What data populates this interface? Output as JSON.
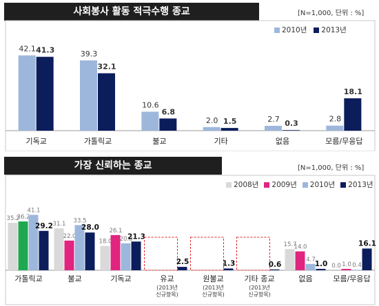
{
  "note": "[N=1,000, 단위 : %]",
  "chart_data": [
    {
      "type": "bar",
      "title": "사회봉사 활동 적극수행 종교",
      "categories": [
        "기독교",
        "가톨릭교",
        "불교",
        "기타",
        "없음",
        "모름/무응답"
      ],
      "series": [
        {
          "name": "2010년",
          "color": "#9db7dc",
          "values": [
            42.1,
            39.3,
            10.6,
            2.0,
            2.7,
            2.8
          ]
        },
        {
          "name": "2013년",
          "color": "#0c1d5c",
          "values": [
            41.3,
            32.1,
            6.8,
            1.5,
            0.3,
            18.1
          ]
        }
      ],
      "ylim": [
        0,
        50
      ],
      "grid": false,
      "legend": "top-right"
    },
    {
      "type": "bar",
      "title": "가장 신뢰하는 종교",
      "categories": [
        "가톨릭교",
        "불교",
        "기독교",
        "유교",
        "원불교",
        "기타 종교",
        "없음",
        "모름/무응답"
      ],
      "category_notes": [
        "",
        "",
        "",
        "(2013년 신규항목)",
        "(2013년 신규항목)",
        "(2013년 신규항목)",
        "",
        ""
      ],
      "series": [
        {
          "name": "2008년",
          "color": "#d9d9d9",
          "values": [
            35.2,
            31.1,
            18.0,
            null,
            null,
            null,
            15.7,
            0.0
          ]
        },
        {
          "name": "2009년",
          "color": "#e0247f",
          "alt_color": "#1fa84f",
          "values": [
            36.2,
            22.0,
            26.1,
            null,
            null,
            null,
            14.0,
            1.0
          ]
        },
        {
          "name": "2010년",
          "color": "#9db7dc",
          "values": [
            41.1,
            33.5,
            20.0,
            null,
            null,
            null,
            4.7,
            0.4
          ]
        },
        {
          "name": "2013년",
          "color": "#0c1d5c",
          "values": [
            29.2,
            28.0,
            21.3,
            2.5,
            1.3,
            0.6,
            1.0,
            16.1
          ]
        }
      ],
      "ylim": [
        0,
        50
      ],
      "grid": false,
      "legend": "top-right"
    }
  ]
}
